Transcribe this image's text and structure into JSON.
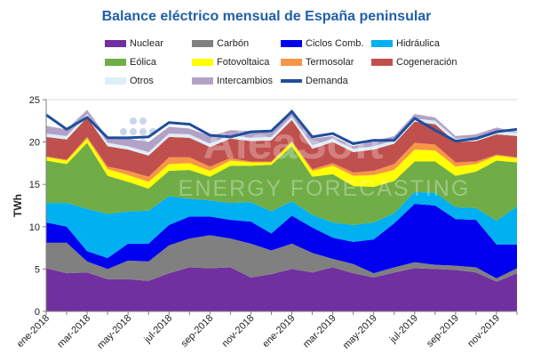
{
  "chart_data": {
    "type": "area",
    "title": "Balance eléctrico mensual de España peninsular",
    "ylabel": "TWh",
    "ylim": [
      0,
      25
    ],
    "yticks": [
      0,
      5,
      10,
      15,
      20,
      25
    ],
    "grid": true,
    "legend_position": "top",
    "watermark": "AleaSoft ENERGY FORECASTING",
    "x": [
      "ene-2018",
      "feb-2018",
      "mar-2018",
      "abr-2018",
      "may-2018",
      "jun-2018",
      "jul-2018",
      "ago-2018",
      "sep-2018",
      "oct-2018",
      "nov-2018",
      "dic-2018",
      "ene-2019",
      "feb-2019",
      "mar-2019",
      "abr-2019",
      "may-2019",
      "jun-2019",
      "jul-2019",
      "ago-2019",
      "sep-2019",
      "oct-2019",
      "nov-2019",
      "dic-2019"
    ],
    "xtick_labels": [
      "ene-2018",
      "mar-2018",
      "may-2018",
      "jul-2018",
      "sep-2018",
      "nov-2018",
      "ene-2019",
      "mar-2019",
      "may-2019",
      "jul-2019",
      "sep-2019",
      "nov-2019"
    ],
    "series": [
      {
        "name": "Nuclear",
        "color": "#7030a0",
        "values": [
          5.1,
          4.5,
          4.6,
          3.8,
          3.8,
          3.6,
          4.5,
          5.2,
          5.1,
          5.2,
          4.0,
          4.4,
          5.0,
          4.6,
          5.2,
          4.5,
          4.0,
          4.6,
          5.1,
          5.0,
          4.9,
          4.6,
          3.5,
          4.5
        ]
      },
      {
        "name": "Carbón",
        "color": "#808080",
        "values": [
          3.0,
          3.6,
          1.3,
          1.2,
          2.2,
          2.3,
          3.3,
          3.4,
          3.9,
          3.4,
          4.0,
          2.8,
          3.0,
          2.3,
          1.0,
          1.1,
          0.5,
          0.6,
          0.7,
          0.5,
          0.5,
          0.6,
          0.4,
          0.6
        ]
      },
      {
        "name": "Ciclos Comb.",
        "color": "#0000ee",
        "values": [
          2.4,
          1.9,
          1.2,
          1.3,
          2.0,
          2.1,
          2.4,
          2.6,
          2.2,
          2.2,
          2.6,
          2.0,
          3.3,
          3.0,
          2.5,
          2.6,
          4.0,
          5.2,
          6.9,
          7.0,
          5.5,
          5.6,
          4.0,
          2.8
        ]
      },
      {
        "name": "Hidráulica",
        "color": "#00b0f0",
        "values": [
          2.3,
          2.8,
          5.0,
          5.2,
          3.8,
          3.9,
          3.4,
          2.1,
          1.9,
          2.0,
          2.3,
          2.6,
          1.7,
          1.5,
          1.8,
          2.0,
          2.0,
          1.2,
          1.4,
          1.5,
          1.4,
          1.4,
          2.8,
          4.5
        ]
      },
      {
        "name": "Eólica",
        "color": "#70ad47",
        "values": [
          5.0,
          4.6,
          7.8,
          4.5,
          3.5,
          2.6,
          3.0,
          3.4,
          2.8,
          4.4,
          4.3,
          5.5,
          6.5,
          4.5,
          5.7,
          4.6,
          4.2,
          3.8,
          3.6,
          3.7,
          3.7,
          4.3,
          7.1,
          5.2
        ]
      },
      {
        "name": "Fotovoltaica",
        "color": "#ffff00",
        "values": [
          0.4,
          0.4,
          0.5,
          0.8,
          0.8,
          0.8,
          0.8,
          0.8,
          0.7,
          0.6,
          0.4,
          0.3,
          0.5,
          0.7,
          1.0,
          1.2,
          1.4,
          1.3,
          1.4,
          1.3,
          1.1,
          0.9,
          0.6,
          0.5
        ]
      },
      {
        "name": "Termosolar",
        "color": "#f79646",
        "values": [
          0.1,
          0.1,
          0.2,
          0.3,
          0.5,
          0.6,
          0.8,
          0.7,
          0.5,
          0.3,
          0.1,
          0.1,
          0.1,
          0.2,
          0.3,
          0.4,
          0.5,
          0.7,
          0.8,
          0.7,
          0.5,
          0.3,
          0.1,
          0.1
        ]
      },
      {
        "name": "Cogeneración",
        "color": "#c0504d",
        "values": [
          2.3,
          2.4,
          2.3,
          2.4,
          2.5,
          2.5,
          2.4,
          2.3,
          2.3,
          2.3,
          2.4,
          2.5,
          2.5,
          2.4,
          2.5,
          2.4,
          2.5,
          2.4,
          2.5,
          2.4,
          2.4,
          2.4,
          2.4,
          2.5
        ]
      },
      {
        "name": "Otros",
        "color": "#ddeef7",
        "values": [
          0.4,
          0.4,
          0.4,
          0.4,
          0.4,
          0.4,
          0.4,
          0.4,
          0.4,
          0.4,
          0.4,
          0.4,
          0.4,
          0.4,
          0.4,
          0.4,
          0.4,
          0.4,
          0.4,
          0.4,
          0.4,
          0.4,
          0.4,
          0.4
        ]
      },
      {
        "name": "Intercambios",
        "color": "#b3a2c7",
        "values": [
          0.9,
          0.8,
          0.5,
          0.6,
          0.9,
          1.2,
          0.8,
          0.7,
          0.9,
          0.6,
          0.8,
          0.5,
          0.9,
          0.8,
          0.3,
          0.3,
          0.6,
          0.5,
          0.5,
          0.4,
          0.3,
          0.4,
          0.4,
          0.1
        ]
      },
      {
        "name": "Demanda",
        "color": "#1f4e9c",
        "type": "line",
        "values": [
          23.2,
          21.5,
          22.9,
          20.5,
          20.5,
          20.6,
          22.3,
          22.1,
          20.8,
          20.6,
          21.2,
          21.3,
          23.6,
          20.6,
          21.0,
          19.8,
          20.2,
          20.2,
          22.8,
          21.4,
          20.1,
          20.4,
          21.2,
          21.5
        ]
      }
    ]
  }
}
